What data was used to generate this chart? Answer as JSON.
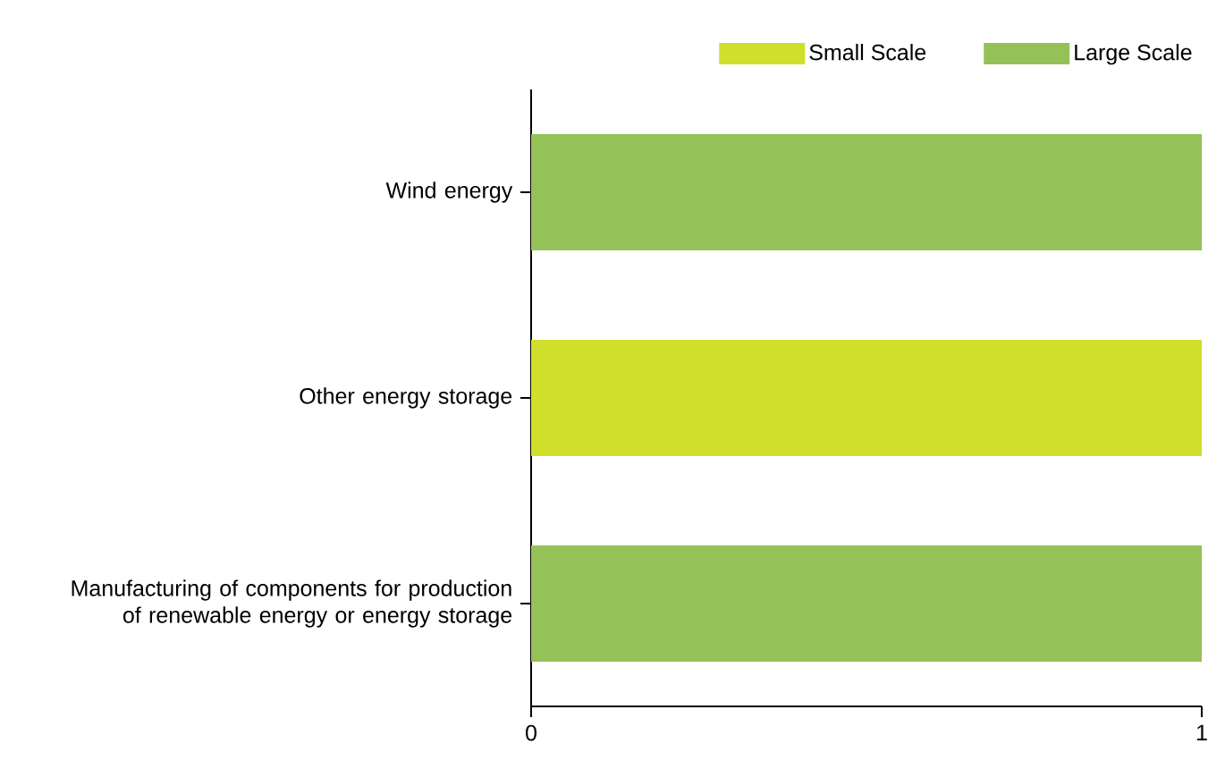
{
  "chart_data": {
    "type": "bar",
    "orientation": "horizontal",
    "stacked": true,
    "categories": [
      "Wind energy",
      "Other energy storage",
      "Manufacturing of components for production of renewable energy or energy storage"
    ],
    "series": [
      {
        "name": "Small Scale",
        "color": "#d0df2a",
        "values": [
          0,
          1,
          0
        ]
      },
      {
        "name": "Large Scale",
        "color": "#95c159",
        "values": [
          1,
          0,
          1
        ]
      }
    ],
    "xlim": [
      0,
      1
    ],
    "xticks": [
      0,
      1
    ],
    "legend": "top right"
  }
}
